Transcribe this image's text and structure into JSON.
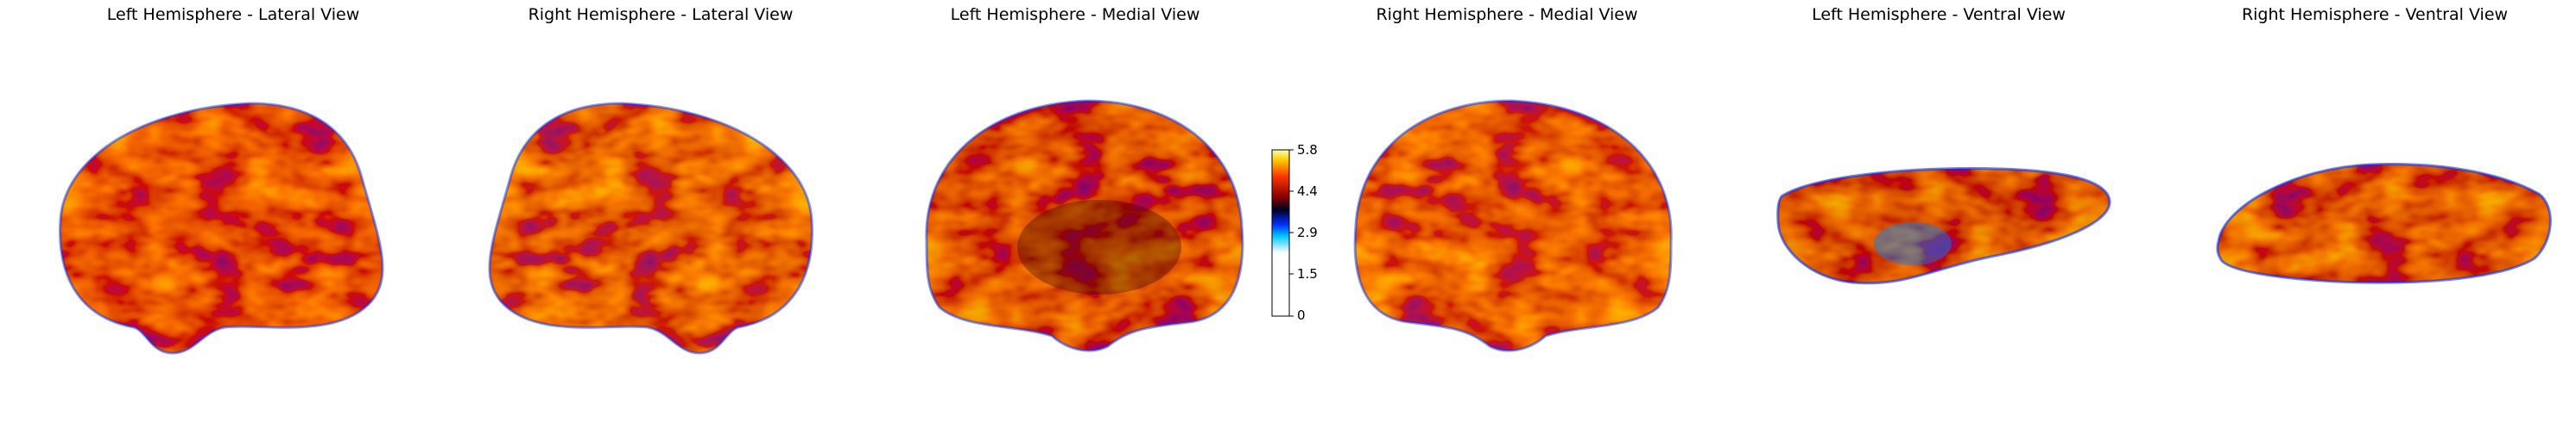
{
  "figure": {
    "panels": [
      {
        "title": "Left Hemisphere - Lateral View",
        "view": "lateral",
        "side": "left"
      },
      {
        "title": "Right Hemisphere - Lateral View",
        "view": "lateral",
        "side": "right"
      },
      {
        "title": "Left Hemisphere - Medial View",
        "view": "medial",
        "side": "left"
      },
      {
        "title": "Right Hemisphere - Medial View",
        "view": "medial",
        "side": "right"
      },
      {
        "title": "Left Hemisphere - Ventral View",
        "view": "ventral",
        "side": "left"
      },
      {
        "title": "Right Hemisphere - Ventral View",
        "view": "ventral",
        "side": "right"
      }
    ],
    "colorbar": {
      "min": 0,
      "max": 5.8,
      "ticks": [
        "5.8",
        "4.4",
        "2.9",
        "1.5",
        "0"
      ],
      "colormap": [
        "#ffffff",
        "#00c8ff",
        "#0030ff",
        "#000033",
        "#8b0000",
        "#ff3300",
        "#ffcc00",
        "#ffffb0"
      ]
    }
  }
}
